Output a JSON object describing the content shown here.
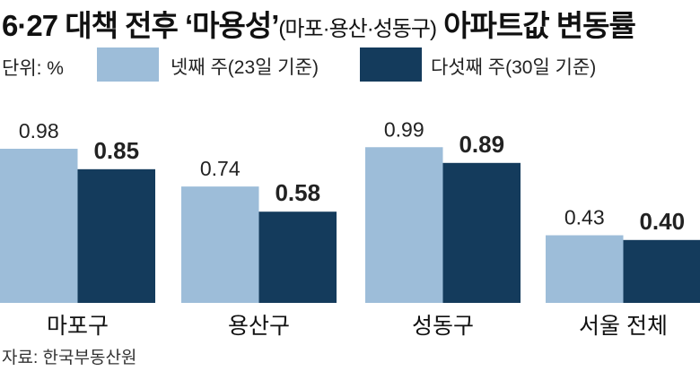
{
  "chart_data": {
    "type": "bar",
    "title": "6·27 대책 전후 ‘마용성’",
    "title_sub": "(마포·용산·성동구)",
    "title_end": " 아파트값 변동률",
    "unit": "단위: %",
    "categories": [
      "마포구",
      "용산구",
      "성동구",
      "서울 전체"
    ],
    "series": [
      {
        "name": "넷째 주(23일 기준)",
        "values": [
          0.98,
          0.74,
          0.99,
          0.43
        ],
        "color": "#9dbdd9"
      },
      {
        "name": "다섯째 주(30일 기준)",
        "values": [
          0.85,
          0.58,
          0.89,
          0.4
        ],
        "color": "#143b5c"
      }
    ],
    "ylim": [
      0,
      1.0
    ],
    "grid": false,
    "legend": "top",
    "source": "자료: 한국부동산원"
  }
}
